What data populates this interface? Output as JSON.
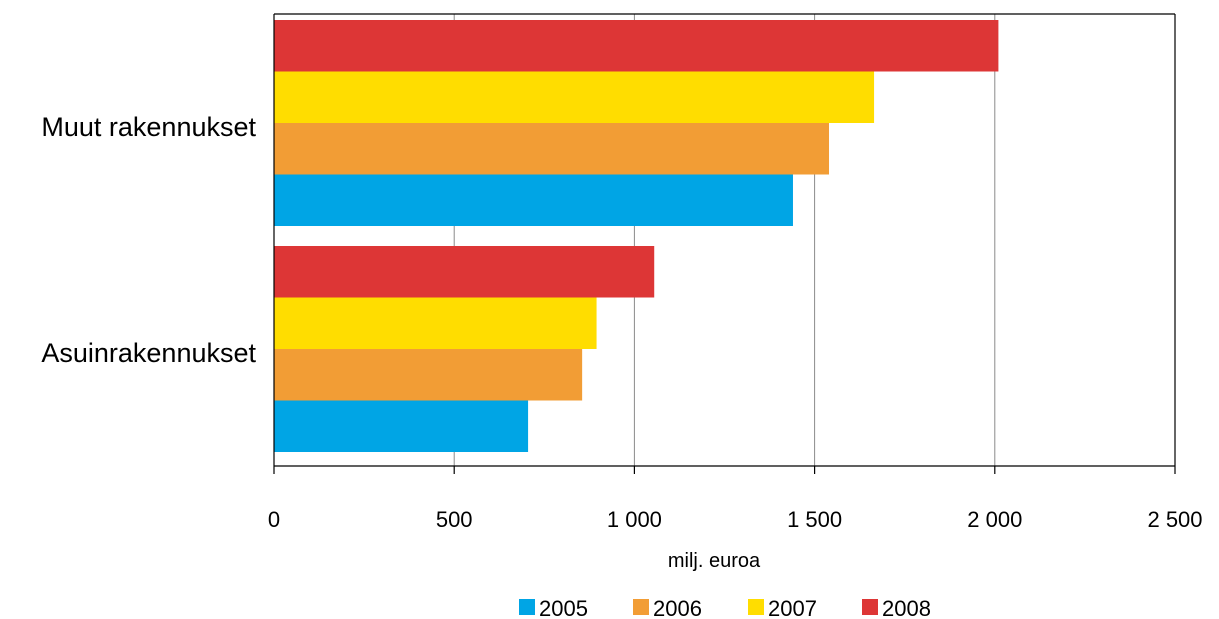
{
  "chart_data": {
    "type": "bar",
    "orientation": "horizontal",
    "categories": [
      "Muut rakennukset",
      "Asuinrakennukset"
    ],
    "series": [
      {
        "name": "2005",
        "values": [
          1440,
          705
        ],
        "color": "#00a5e5"
      },
      {
        "name": "2006",
        "values": [
          1540,
          855
        ],
        "color": "#f29d35"
      },
      {
        "name": "2007",
        "values": [
          1665,
          895
        ],
        "color": "#ffdd00"
      },
      {
        "name": "2008",
        "values": [
          2010,
          1055
        ],
        "color": "#dd3636"
      }
    ],
    "xlabel": "milj. euroa",
    "xlim": [
      0,
      2500
    ],
    "ticks": [
      {
        "value": 0,
        "label": "0"
      },
      {
        "value": 500,
        "label": "500"
      },
      {
        "value": 1000,
        "label": "1 000"
      },
      {
        "value": 1500,
        "label": "1 500"
      },
      {
        "value": 2000,
        "label": "2 000"
      },
      {
        "value": 2500,
        "label": "2 500"
      }
    ],
    "grid": "vertical",
    "legend_position": "bottom"
  }
}
